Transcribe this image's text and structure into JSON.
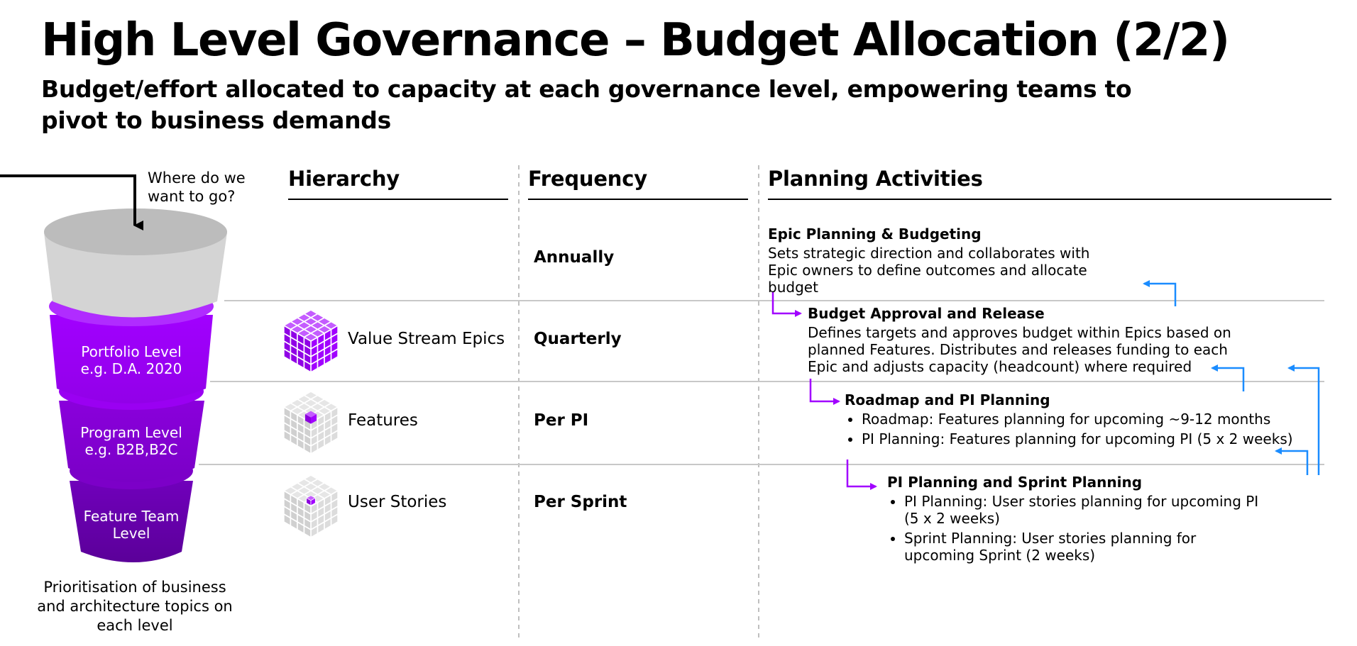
{
  "title": "High Level Governance – Budget Allocation (2/2)",
  "subtitle": "Budget/effort allocated to capacity at each governance level, empowering teams to pivot to business demands",
  "columns": {
    "hierarchy": "Hierarchy",
    "frequency": "Frequency",
    "planning": "Planning Activities"
  },
  "funnel": {
    "where_question": "Where do we want to go?",
    "levels": [
      {
        "label": "Portfolio Level e.g. D.A. 2020"
      },
      {
        "label": "Program Level e.g. B2B,B2C"
      },
      {
        "label": "Feature Team Level"
      }
    ],
    "caption": "Prioritisation of business and architecture topics on each level"
  },
  "rows": [
    {
      "hierarchy": "",
      "frequency": "Annually",
      "activity_title": "Epic Planning & Budgeting",
      "activity_desc": "Sets strategic direction and collaborates with Epic owners to define outcomes and allocate budget"
    },
    {
      "hierarchy": "Value Stream Epics",
      "frequency": "Quarterly",
      "activity_title": "Budget Approval and Release",
      "activity_desc": "Defines targets and approves budget within Epics based on planned Features. Distributes and releases funding to each Epic and adjusts capacity (headcount) where required"
    },
    {
      "hierarchy": "Features",
      "frequency": "Per PI",
      "activity_title": "Roadmap and PI Planning",
      "activity_bullets": [
        "Roadmap: Features planning for upcoming ~9-12 months",
        "PI Planning: Features planning for upcoming PI (5 x 2 weeks)"
      ]
    },
    {
      "hierarchy": "User Stories",
      "frequency": "Per Sprint",
      "activity_title": "PI Planning and Sprint Planning",
      "activity_bullets": [
        "PI Planning: User stories planning for upcoming PI (5 x 2 weeks)",
        "Sprint Planning: User stories planning for upcoming Sprint (2 weeks)"
      ]
    }
  ],
  "colors": {
    "purple": "#a100ff",
    "purple_dark": "#6a00b0",
    "blue_arrow": "#1a8cff",
    "grey_cup": "#d4d4d4",
    "divider": "#bfbfbf"
  }
}
